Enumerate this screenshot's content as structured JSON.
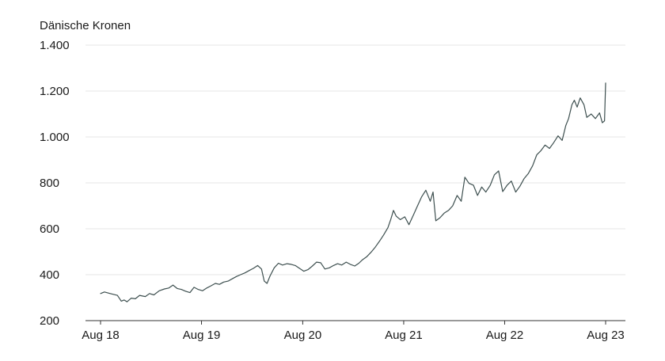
{
  "chart_data": {
    "type": "line",
    "title": "",
    "ylabel": "Dänische Kronen",
    "xlabel": "",
    "ylim": [
      200,
      1400
    ],
    "y_ticks": [
      200,
      400,
      600,
      800,
      1000,
      1200,
      1400
    ],
    "y_tick_labels": [
      "200",
      "400",
      "600",
      "800",
      "1.000",
      "1.200",
      "1.400"
    ],
    "x_range": [
      "2018-08-01",
      "2023-08-01"
    ],
    "x_ticks": [
      "2018-08-01",
      "2019-08-01",
      "2020-08-01",
      "2021-08-01",
      "2022-08-01",
      "2023-08-01"
    ],
    "x_tick_labels": [
      "Aug 18",
      "Aug 19",
      "Aug 20",
      "Aug 21",
      "Aug 22",
      "Aug 23"
    ],
    "grid": true,
    "line_color": "#3d4f4f",
    "series": [
      {
        "points": [
          [
            "2018-08-01",
            318
          ],
          [
            "2018-08-15",
            325
          ],
          [
            "2018-09-05",
            318
          ],
          [
            "2018-10-01",
            310
          ],
          [
            "2018-10-15",
            285
          ],
          [
            "2018-10-25",
            290
          ],
          [
            "2018-11-05",
            282
          ],
          [
            "2018-11-20",
            298
          ],
          [
            "2018-12-05",
            295
          ],
          [
            "2018-12-20",
            310
          ],
          [
            "2019-01-10",
            305
          ],
          [
            "2019-01-25",
            318
          ],
          [
            "2019-02-10",
            312
          ],
          [
            "2019-03-01",
            330
          ],
          [
            "2019-03-20",
            338
          ],
          [
            "2019-04-05",
            342
          ],
          [
            "2019-04-20",
            355
          ],
          [
            "2019-05-05",
            340
          ],
          [
            "2019-05-20",
            336
          ],
          [
            "2019-06-05",
            328
          ],
          [
            "2019-06-20",
            322
          ],
          [
            "2019-07-05",
            345
          ],
          [
            "2019-07-20",
            336
          ],
          [
            "2019-08-05",
            330
          ],
          [
            "2019-08-20",
            342
          ],
          [
            "2019-09-05",
            352
          ],
          [
            "2019-09-20",
            362
          ],
          [
            "2019-10-05",
            358
          ],
          [
            "2019-10-20",
            368
          ],
          [
            "2019-11-05",
            372
          ],
          [
            "2019-11-20",
            382
          ],
          [
            "2019-12-05",
            392
          ],
          [
            "2019-12-20",
            400
          ],
          [
            "2020-01-05",
            408
          ],
          [
            "2020-01-20",
            418
          ],
          [
            "2020-02-05",
            428
          ],
          [
            "2020-02-20",
            440
          ],
          [
            "2020-03-05",
            425
          ],
          [
            "2020-03-15",
            372
          ],
          [
            "2020-03-25",
            362
          ],
          [
            "2020-04-05",
            395
          ],
          [
            "2020-04-20",
            430
          ],
          [
            "2020-05-05",
            450
          ],
          [
            "2020-05-20",
            442
          ],
          [
            "2020-06-05",
            448
          ],
          [
            "2020-06-20",
            445
          ],
          [
            "2020-07-05",
            440
          ],
          [
            "2020-07-20",
            428
          ],
          [
            "2020-08-05",
            415
          ],
          [
            "2020-08-20",
            422
          ],
          [
            "2020-09-05",
            438
          ],
          [
            "2020-09-20",
            455
          ],
          [
            "2020-10-05",
            452
          ],
          [
            "2020-10-20",
            425
          ],
          [
            "2020-11-05",
            430
          ],
          [
            "2020-11-20",
            440
          ],
          [
            "2020-12-05",
            448
          ],
          [
            "2020-12-20",
            442
          ],
          [
            "2021-01-05",
            455
          ],
          [
            "2021-01-20",
            445
          ],
          [
            "2021-02-05",
            438
          ],
          [
            "2021-02-20",
            450
          ],
          [
            "2021-03-05",
            465
          ],
          [
            "2021-03-20",
            478
          ],
          [
            "2021-04-05",
            498
          ],
          [
            "2021-04-20",
            520
          ],
          [
            "2021-05-05",
            545
          ],
          [
            "2021-05-20",
            572
          ],
          [
            "2021-06-05",
            605
          ],
          [
            "2021-06-15",
            640
          ],
          [
            "2021-06-25",
            680
          ],
          [
            "2021-07-05",
            655
          ],
          [
            "2021-07-20",
            640
          ],
          [
            "2021-08-05",
            652
          ],
          [
            "2021-08-20",
            618
          ],
          [
            "2021-09-05",
            660
          ],
          [
            "2021-09-20",
            700
          ],
          [
            "2021-10-05",
            740
          ],
          [
            "2021-10-20",
            768
          ],
          [
            "2021-11-05",
            720
          ],
          [
            "2021-11-15",
            760
          ],
          [
            "2021-11-25",
            635
          ],
          [
            "2021-12-10",
            648
          ],
          [
            "2021-12-25",
            668
          ],
          [
            "2022-01-10",
            680
          ],
          [
            "2022-01-25",
            700
          ],
          [
            "2022-02-10",
            745
          ],
          [
            "2022-02-25",
            720
          ],
          [
            "2022-03-10",
            825
          ],
          [
            "2022-03-25",
            798
          ],
          [
            "2022-04-10",
            790
          ],
          [
            "2022-04-25",
            745
          ],
          [
            "2022-05-10",
            782
          ],
          [
            "2022-05-25",
            760
          ],
          [
            "2022-06-10",
            790
          ],
          [
            "2022-06-25",
            835
          ],
          [
            "2022-07-10",
            852
          ],
          [
            "2022-07-25",
            762
          ],
          [
            "2022-08-10",
            790
          ],
          [
            "2022-08-25",
            808
          ],
          [
            "2022-09-10",
            760
          ],
          [
            "2022-09-25",
            785
          ],
          [
            "2022-10-10",
            818
          ],
          [
            "2022-10-25",
            840
          ],
          [
            "2022-11-10",
            875
          ],
          [
            "2022-11-25",
            922
          ],
          [
            "2022-12-10",
            940
          ],
          [
            "2022-12-25",
            965
          ],
          [
            "2023-01-10",
            950
          ],
          [
            "2023-01-25",
            975
          ],
          [
            "2023-02-10",
            1005
          ],
          [
            "2023-02-25",
            985
          ],
          [
            "2023-03-10",
            1050
          ],
          [
            "2023-03-20",
            1080
          ],
          [
            "2023-04-01",
            1140
          ],
          [
            "2023-04-10",
            1160
          ],
          [
            "2023-04-20",
            1130
          ],
          [
            "2023-05-01",
            1170
          ],
          [
            "2023-05-15",
            1140
          ],
          [
            "2023-05-25",
            1085
          ],
          [
            "2023-06-10",
            1100
          ],
          [
            "2023-06-25",
            1080
          ],
          [
            "2023-07-10",
            1105
          ],
          [
            "2023-07-20",
            1062
          ],
          [
            "2023-07-28",
            1070
          ],
          [
            "2023-08-01",
            1235
          ]
        ]
      }
    ]
  }
}
